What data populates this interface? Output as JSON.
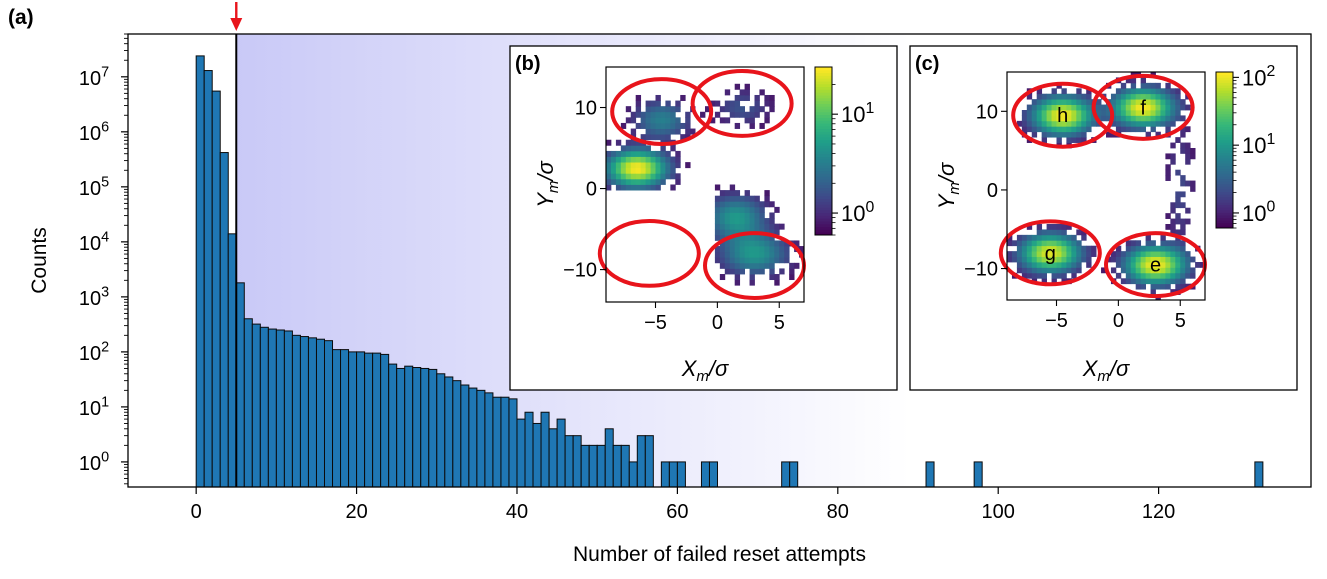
{
  "panel_labels": {
    "a": "(a)",
    "b": "(b)",
    "c": "(c)"
  },
  "colors": {
    "bar_fill": "#1f77b4",
    "bar_edge": "#0b0b0b",
    "highlight_gradient": "#c9c9f7",
    "arrow": "#e8141b",
    "circle": "#e8141b",
    "threshold_line": "#000000"
  },
  "chart_data": [
    {
      "type": "bar",
      "panel": "(a)",
      "xlabel": "Number of failed reset attempts",
      "ylabel": "Counts",
      "yscale": "log",
      "xlim": [
        -8.5,
        139
      ],
      "ylim": [
        0.35,
        60000000
      ],
      "xticks": [
        0,
        20,
        40,
        60,
        80,
        100,
        120
      ],
      "xtick_labels": [
        "0",
        "20",
        "40",
        "60",
        "80",
        "100",
        "120"
      ],
      "yticks": [
        1,
        10,
        100,
        1000,
        10000,
        100000,
        1000000,
        10000000
      ],
      "ytick_labels": [
        [
          "10",
          "0"
        ],
        [
          "10",
          "1"
        ],
        [
          "10",
          "2"
        ],
        [
          "10",
          "3"
        ],
        [
          "10",
          "4"
        ],
        [
          "10",
          "5"
        ],
        [
          "10",
          "6"
        ],
        [
          "10",
          "7"
        ]
      ],
      "threshold": 5,
      "highlight_range": [
        5,
        89
      ],
      "bin_width": 1,
      "values": [
        24000000,
        13000000,
        5500000,
        420000,
        14000,
        1800,
        400,
        320,
        280,
        260,
        250,
        240,
        200,
        190,
        180,
        170,
        160,
        110,
        110,
        100,
        100,
        95,
        95,
        90,
        60,
        50,
        55,
        52,
        50,
        48,
        40,
        35,
        30,
        25,
        22,
        20,
        18,
        15,
        15,
        14,
        6,
        8,
        5,
        8,
        4,
        6,
        3,
        3,
        2,
        2,
        2,
        4,
        2,
        2,
        1,
        3,
        3,
        0,
        1,
        1,
        1,
        0,
        0,
        1,
        1,
        0,
        0,
        0,
        0,
        0,
        0,
        0,
        0,
        1,
        1,
        0,
        0,
        0,
        0,
        0,
        0,
        0,
        0,
        0,
        0,
        0,
        0,
        0,
        0,
        0,
        0,
        1,
        0,
        0,
        0,
        0,
        0,
        1,
        0,
        0,
        0,
        0,
        0,
        0,
        0,
        0,
        0,
        0,
        0,
        0,
        0,
        0,
        0,
        0,
        0,
        0,
        0,
        0,
        0,
        0,
        0,
        0,
        0,
        0,
        0,
        0,
        0,
        0,
        0,
        0,
        0,
        0,
        1
      ]
    },
    {
      "type": "heatmap",
      "panel": "(b)",
      "xlabel": "X_m/σ",
      "ylabel": "Y_m/σ",
      "xlim": [
        -9,
        7
      ],
      "ylim": [
        -14,
        15
      ],
      "xticks": [
        -5,
        0,
        5
      ],
      "xtick_labels": [
        "−5",
        "0",
        "5"
      ],
      "yticks": [
        10,
        0,
        -10
      ],
      "ytick_labels": [
        "10",
        "0",
        "−10"
      ],
      "colorbar": {
        "scale": "log",
        "min": 0.6,
        "max": 30,
        "ticks": [
          1,
          10
        ],
        "tick_labels": [
          [
            "10",
            "0"
          ],
          [
            "10",
            "1"
          ]
        ]
      },
      "clusters": [
        {
          "x": -6.5,
          "y": 2.5,
          "spread_x": 1.6,
          "spread_y": 1.5,
          "peak": 1.0
        },
        {
          "x": -4.5,
          "y": 8.5,
          "spread_x": 1.5,
          "spread_y": 1.6,
          "peak": 0.35
        },
        {
          "x": 1.5,
          "y": -3.5,
          "spread_x": 1.6,
          "spread_y": 1.8,
          "peak": 0.45
        },
        {
          "x": 3.0,
          "y": -8.0,
          "spread_x": 1.8,
          "spread_y": 1.8,
          "peak": 0.45
        },
        {
          "x": 2.0,
          "y": 10.0,
          "spread_x": 1.5,
          "spread_y": 1.5,
          "peak": 0.18
        }
      ],
      "circles": [
        {
          "x": -4.5,
          "y": 9.5,
          "r": 4.0
        },
        {
          "x": 2.0,
          "y": 10.5,
          "r": 4.0
        },
        {
          "x": -5.5,
          "y": -8.0,
          "r": 4.0
        },
        {
          "x": 3.0,
          "y": -9.5,
          "r": 4.0
        }
      ]
    },
    {
      "type": "heatmap",
      "panel": "(c)",
      "xlabel": "X_m/σ",
      "ylabel": "Y_m/σ",
      "xlim": [
        -9,
        7
      ],
      "ylim": [
        -14,
        15
      ],
      "xticks": [
        -5,
        0,
        5
      ],
      "xtick_labels": [
        "−5",
        "0",
        "5"
      ],
      "yticks": [
        10,
        0,
        -10
      ],
      "ytick_labels": [
        "10",
        "0",
        "−10"
      ],
      "colorbar": {
        "scale": "log",
        "min": 0.6,
        "max": 120,
        "ticks": [
          1,
          10,
          100
        ],
        "tick_labels": [
          [
            "10",
            "0"
          ],
          [
            "10",
            "1"
          ],
          [
            "10",
            "2"
          ]
        ]
      },
      "clusters": [
        {
          "x": -4.5,
          "y": 9.5,
          "spread_x": 1.6,
          "spread_y": 1.6,
          "peak": 1.0
        },
        {
          "x": 2.0,
          "y": 10.5,
          "spread_x": 1.6,
          "spread_y": 1.6,
          "peak": 1.0
        },
        {
          "x": -5.5,
          "y": -8.0,
          "spread_x": 1.6,
          "spread_y": 1.6,
          "peak": 0.95
        },
        {
          "x": 3.0,
          "y": -9.5,
          "spread_x": 1.6,
          "spread_y": 1.6,
          "peak": 1.0
        },
        {
          "x": 5.0,
          "y": 0.5,
          "spread_x": 0.7,
          "spread_y": 5.0,
          "peak": 0.15
        }
      ],
      "circles": [
        {
          "x": -4.5,
          "y": 9.5,
          "r": 4.0,
          "label": "h"
        },
        {
          "x": 2.0,
          "y": 10.5,
          "r": 4.0,
          "label": "f"
        },
        {
          "x": -5.5,
          "y": -8.0,
          "r": 4.0,
          "label": "g"
        },
        {
          "x": 3.0,
          "y": -9.5,
          "r": 4.0,
          "label": "e"
        }
      ]
    }
  ]
}
